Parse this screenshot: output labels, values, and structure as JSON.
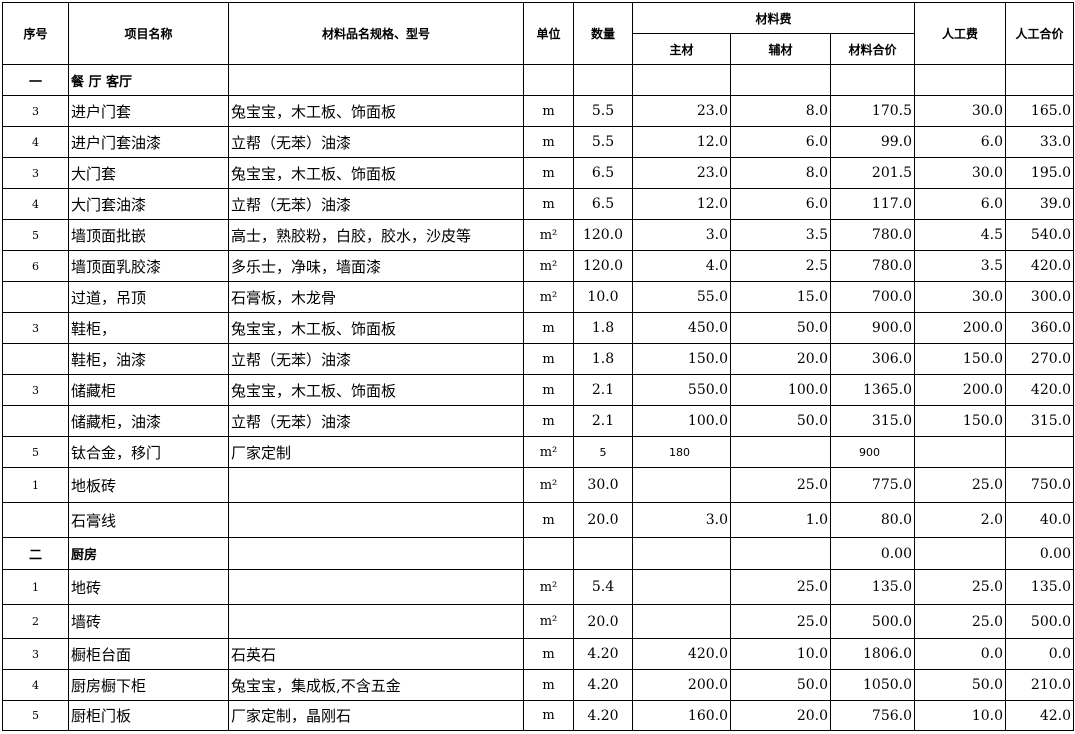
{
  "header": {
    "seq": "序号",
    "name": "项目名称",
    "material": "材料品名规格、型号",
    "unit": "单位",
    "qty": "数量",
    "material_cost": "材料费",
    "main": "主材",
    "aux": "辅材",
    "mat_total": "材料合价",
    "labor": "人工费",
    "labor_total": "人工合价"
  },
  "rows": [
    {
      "seq": "一",
      "name": "餐 厅 客厅",
      "material": "",
      "unit": "",
      "qty": "",
      "main": "",
      "aux": "",
      "mat_total": "",
      "labor": "",
      "labor_total": "",
      "section": true
    },
    {
      "seq": "3",
      "name": "进户门套",
      "material": "兔宝宝，木工板、饰面板",
      "unit": "m",
      "qty": "5.5",
      "main": "23.0",
      "aux": "8.0",
      "mat_total": "170.5",
      "labor": "30.0",
      "labor_total": "165.0"
    },
    {
      "seq": "4",
      "name": "进户门套油漆",
      "material": "立帮（无苯）油漆",
      "unit": "m",
      "qty": "5.5",
      "main": "12.0",
      "aux": "6.0",
      "mat_total": "99.0",
      "labor": "6.0",
      "labor_total": "33.0"
    },
    {
      "seq": "3",
      "name": "大门套",
      "material": "兔宝宝，木工板、饰面板",
      "unit": "m",
      "qty": "6.5",
      "main": "23.0",
      "aux": "8.0",
      "mat_total": "201.5",
      "labor": "30.0",
      "labor_total": "195.0"
    },
    {
      "seq": "4",
      "name": "大门套油漆",
      "material": "立帮（无苯）油漆",
      "unit": "m",
      "qty": "6.5",
      "main": "12.0",
      "aux": "6.0",
      "mat_total": "117.0",
      "labor": "6.0",
      "labor_total": "39.0"
    },
    {
      "seq": "5",
      "name": "墙顶面批嵌",
      "material": "高士，熟胶粉，白胶，胶水，沙皮等",
      "unit": "m²",
      "qty": "120.0",
      "main": "3.0",
      "aux": "3.5",
      "mat_total": "780.0",
      "labor": "4.5",
      "labor_total": "540.0"
    },
    {
      "seq": "6",
      "name": "墙顶面乳胶漆",
      "material": "多乐士，净味，墙面漆",
      "unit": "m²",
      "qty": "120.0",
      "main": "4.0",
      "aux": "2.5",
      "mat_total": "780.0",
      "labor": "3.5",
      "labor_total": "420.0"
    },
    {
      "seq": "",
      "name": "过道，吊顶",
      "material": "石膏板，木龙骨",
      "unit": "m²",
      "qty": "10.0",
      "main": "55.0",
      "aux": "15.0",
      "mat_total": "700.0",
      "labor": "30.0",
      "labor_total": "300.0"
    },
    {
      "seq": "3",
      "name": "鞋柜，",
      "material": "兔宝宝，木工板、饰面板",
      "unit": "m",
      "qty": "1.8",
      "main": "450.0",
      "aux": "50.0",
      "mat_total": "900.0",
      "labor": "200.0",
      "labor_total": "360.0"
    },
    {
      "seq": "",
      "name": "鞋柜，油漆",
      "material": "立帮（无苯）油漆",
      "unit": "m",
      "qty": "1.8",
      "main": "150.0",
      "aux": "20.0",
      "mat_total": "306.0",
      "labor": "150.0",
      "labor_total": "270.0"
    },
    {
      "seq": "3",
      "name": "储藏柜",
      "material": "兔宝宝，木工板、饰面板",
      "unit": "m",
      "qty": "2.1",
      "main": "550.0",
      "aux": "100.0",
      "mat_total": "1365.0",
      "labor": "200.0",
      "labor_total": "420.0"
    },
    {
      "seq": "",
      "name": "储藏柜，油漆",
      "material": "立帮（无苯）油漆",
      "unit": "m",
      "qty": "2.1",
      "main": "100.0",
      "aux": "50.0",
      "mat_total": "315.0",
      "labor": "150.0",
      "labor_total": "315.0"
    },
    {
      "seq": "5",
      "name": "钛合金，移门",
      "material": "厂家定制",
      "unit": "m²",
      "qty": "5",
      "main": "180",
      "aux": "",
      "mat_total": "900",
      "labor": "",
      "labor_total": "",
      "plain": true
    },
    {
      "seq": "1",
      "name": "地板砖",
      "material": "",
      "unit": "m²",
      "qty": "30.0",
      "main": "",
      "aux": "25.0",
      "mat_total": "775.0",
      "labor": "25.0",
      "labor_total": "750.0"
    },
    {
      "seq": "",
      "name": "石膏线",
      "material": "",
      "unit": "m",
      "qty": "20.0",
      "main": "3.0",
      "aux": "1.0",
      "mat_total": "80.0",
      "labor": "2.0",
      "labor_total": "40.0"
    },
    {
      "seq": "二",
      "name": "厨房",
      "material": "",
      "unit": "",
      "qty": "",
      "main": "",
      "aux": "",
      "mat_total": "0.00",
      "labor": "",
      "labor_total": "0.00",
      "section": true
    },
    {
      "seq": "1",
      "name": "地砖",
      "material": "",
      "unit": "m²",
      "qty": "5.4",
      "main": "",
      "aux": "25.0",
      "mat_total": "135.0",
      "labor": "25.0",
      "labor_total": "135.0"
    },
    {
      "seq": "2",
      "name": "墙砖",
      "material": "",
      "unit": "m²",
      "qty": "20.0",
      "main": "",
      "aux": "25.0",
      "mat_total": "500.0",
      "labor": "25.0",
      "labor_total": "500.0"
    },
    {
      "seq": "3",
      "name": "橱柜台面",
      "material": "石英石",
      "unit": "m",
      "qty": "4.20",
      "main": "420.0",
      "aux": "10.0",
      "mat_total": "1806.0",
      "labor": "0.0",
      "labor_total": "0.0"
    },
    {
      "seq": "4",
      "name": "厨房橱下柜",
      "material": "兔宝宝，集成板,不含五金",
      "unit": "m",
      "qty": "4.20",
      "main": "200.0",
      "aux": "50.0",
      "mat_total": "1050.0",
      "labor": "50.0",
      "labor_total": "210.0"
    },
    {
      "seq": "5",
      "name": "厨柜门板",
      "material": "厂家定制，晶刚石",
      "unit": "m",
      "qty": "4.20",
      "main": "160.0",
      "aux": "20.0",
      "mat_total": "756.0",
      "labor": "10.0",
      "labor_total": "42.0"
    }
  ]
}
